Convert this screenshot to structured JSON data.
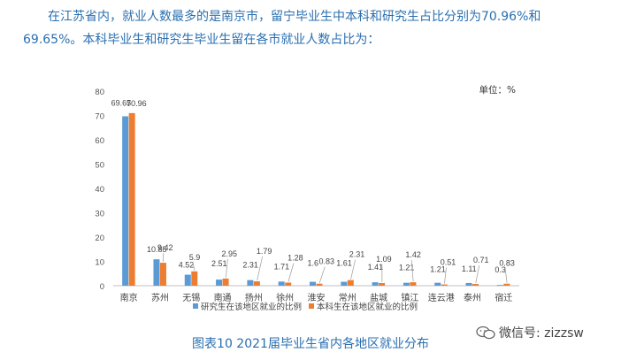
{
  "intro": {
    "line1": "在江苏省内，就业人数最多的是南京市，留宁毕业生中本科和研究生占比分别为70.96%和",
    "line2": "69.65%。本科毕业生和研究生毕业生留在各市就业人数占比为："
  },
  "caption": "图表10    2021届毕业生省内各地区就业分布",
  "watermark": "微信号: zizzsw",
  "chart_data": {
    "type": "bar",
    "unit_label": "单位：%",
    "categories": [
      "南京",
      "苏州",
      "无锡",
      "南通",
      "扬州",
      "徐州",
      "淮安",
      "常州",
      "盐城",
      "镇江",
      "连云港",
      "泰州",
      "宿迁"
    ],
    "series": [
      {
        "name": "研究生在该地区就业的比例",
        "color": "#5b9bd5",
        "values": [
          69.65,
          10.85,
          4.52,
          2.51,
          2.31,
          1.71,
          1.6,
          1.61,
          1.41,
          1.21,
          1.21,
          1.11,
          0.3
        ]
      },
      {
        "name": "本科生在该地区就业的比例",
        "color": "#ed7d31",
        "values": [
          70.96,
          9.42,
          5.9,
          2.95,
          1.79,
          1.28,
          0.83,
          2.31,
          1.09,
          1.42,
          0.51,
          0.71,
          0.83
        ]
      }
    ],
    "ylim": [
      0,
      80
    ],
    "yticks": [
      0,
      10,
      20,
      30,
      40,
      50,
      60,
      70,
      80
    ],
    "grid": false,
    "legend_position": "bottom"
  }
}
